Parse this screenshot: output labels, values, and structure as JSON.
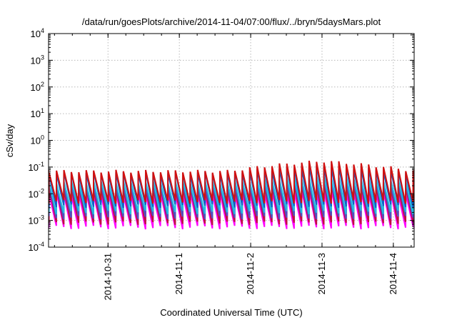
{
  "chart_data": {
    "type": "line",
    "title": "/data/run/goesPlots/archive/2014-11-04/07:00/flux/../bryn/5daysMars.plot",
    "xlabel": "Coordinated Universal Time (UTC)",
    "ylabel": "cSv/day",
    "yscale": "log",
    "grid": true,
    "xlim": [
      "2014-10-30T04:00",
      "2014-11-04T07:00"
    ],
    "ylim": [
      0.0001,
      10000
    ],
    "x_ticks": [
      "2014-10-31",
      "2014-11-1",
      "2014-11-2",
      "2014-11-3",
      "2014-11-4"
    ],
    "y_ticks": [
      {
        "base": "10",
        "exp": "-4"
      },
      {
        "base": "10",
        "exp": "-3"
      },
      {
        "base": "10",
        "exp": "-2"
      },
      {
        "base": "10",
        "exp": "-1"
      },
      {
        "base": "10",
        "exp": "0"
      },
      {
        "base": "10",
        "exp": "1"
      },
      {
        "base": "10",
        "exp": "2"
      },
      {
        "base": "10",
        "exp": "3"
      },
      {
        "base": "10",
        "exp": "4"
      }
    ],
    "pattern": {
      "cycle_hours": 2.5,
      "first_peak": "2014-10-30T04:10",
      "peak_hours_offset_in_cycle": 0.1,
      "trough_hours_offset_in_cycle": 2.45
    },
    "series": [
      {
        "color": "#ff00ff",
        "peak": 0.01,
        "trough": 0.00055,
        "peak_boost_nov3": 1.3
      },
      {
        "color": "#c01040",
        "peak": 0.016,
        "trough": 0.0008,
        "peak_boost_nov3": 1.4
      },
      {
        "color": "#5050c0",
        "peak": 0.02,
        "trough": 0.0013,
        "peak_boost_nov3": 1.5
      },
      {
        "color": "#20c0e0",
        "peak": 0.028,
        "trough": 0.002,
        "peak_boost_nov3": 1.6
      },
      {
        "color": "#1060c8",
        "peak": 0.06,
        "trough": 0.0035,
        "peak_boost_nov3": 1.8
      },
      {
        "color": "#d01010",
        "peak": 0.07,
        "trough": 0.005,
        "peak_boost_nov3": 2.4
      }
    ]
  }
}
